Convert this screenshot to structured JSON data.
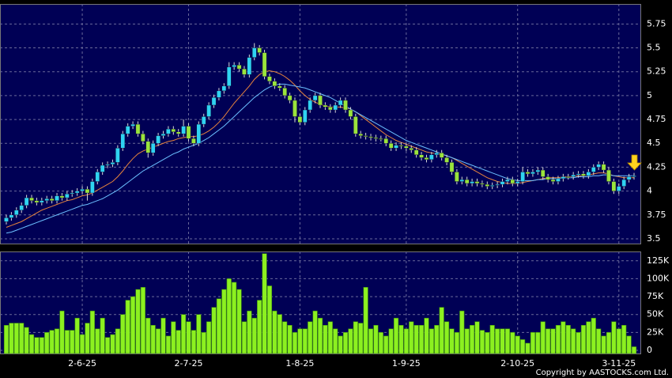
{
  "chart_data": {
    "type": "candlestick",
    "source": "Copyright by AASTOCKS.com Ltd.",
    "categories": [
      null,
      null,
      null,
      null,
      null,
      null,
      null,
      null,
      null,
      null,
      null,
      null,
      null,
      null,
      null,
      "2-6-25",
      null,
      null,
      null,
      null,
      null,
      null,
      null,
      null,
      null,
      null,
      null,
      null,
      null,
      null,
      null,
      null,
      null,
      null,
      null,
      null,
      "2-7-25",
      null,
      null,
      null,
      null,
      null,
      null,
      null,
      null,
      null,
      null,
      null,
      null,
      null,
      null,
      null,
      null,
      null,
      null,
      null,
      null,
      null,
      "1-8-25",
      null,
      null,
      null,
      null,
      null,
      null,
      null,
      null,
      null,
      null,
      null,
      null,
      null,
      null,
      null,
      null,
      null,
      null,
      null,
      null,
      "1-9-25",
      null,
      null,
      null,
      null,
      null,
      null,
      null,
      null,
      null,
      null,
      null,
      null,
      null,
      null,
      null,
      null,
      null,
      null,
      null,
      null,
      null,
      "2-10-25",
      null,
      null,
      null,
      null,
      null,
      null,
      null,
      null,
      null,
      null,
      null,
      null,
      null,
      null,
      null,
      null,
      null,
      null,
      null,
      "3-11-25",
      null,
      null,
      null
    ],
    "open": [
      3.68,
      3.72,
      3.75,
      3.8,
      3.85,
      3.93,
      3.9,
      3.88,
      3.9,
      3.92,
      3.9,
      3.95,
      3.93,
      3.97,
      3.98,
      4.0,
      4.02,
      3.98,
      4.1,
      4.2,
      4.27,
      4.28,
      4.3,
      4.45,
      4.6,
      4.68,
      4.7,
      4.6,
      4.52,
      4.4,
      4.5,
      4.58,
      4.6,
      4.65,
      4.62,
      4.6,
      4.68,
      4.55,
      4.5,
      4.7,
      4.78,
      4.9,
      4.98,
      5.05,
      5.1,
      5.3,
      5.32,
      5.28,
      5.22,
      5.4,
      5.5,
      5.45,
      5.2,
      5.15,
      5.1,
      5.08,
      5.0,
      4.95,
      4.78,
      4.72,
      4.85,
      4.95,
      5.0,
      4.9,
      4.88,
      4.85,
      4.9,
      4.95,
      4.85,
      4.78,
      4.6,
      4.58,
      4.57,
      4.56,
      4.55,
      4.55,
      4.5,
      4.45,
      4.48,
      4.47,
      4.45,
      4.43,
      4.38,
      4.35,
      4.33,
      4.38,
      4.4,
      4.35,
      4.3,
      4.2,
      4.1,
      4.12,
      4.08,
      4.1,
      4.08,
      4.07,
      4.05,
      4.06,
      4.07,
      4.1,
      4.12,
      4.08,
      4.1,
      4.2,
      4.18,
      4.2,
      4.22,
      4.15,
      4.12,
      4.1,
      4.13,
      4.15,
      4.15,
      4.17,
      4.18,
      4.16,
      4.2,
      4.25,
      4.28,
      4.22,
      4.1,
      4.0,
      4.05,
      4.12,
      4.15
    ],
    "high": [
      3.75,
      3.78,
      3.83,
      3.88,
      3.96,
      3.96,
      3.93,
      3.93,
      3.95,
      3.95,
      3.98,
      3.98,
      4.0,
      4.01,
      4.03,
      4.05,
      4.05,
      4.13,
      4.23,
      4.3,
      4.31,
      4.33,
      4.48,
      4.63,
      4.71,
      4.73,
      4.73,
      4.63,
      4.55,
      4.53,
      4.61,
      4.63,
      4.68,
      4.68,
      4.65,
      4.75,
      4.71,
      4.58,
      4.73,
      4.81,
      4.93,
      5.01,
      5.08,
      5.13,
      5.35,
      5.35,
      5.35,
      5.31,
      5.43,
      5.55,
      5.53,
      5.48,
      5.23,
      5.18,
      5.13,
      5.11,
      5.03,
      4.98,
      4.81,
      4.88,
      4.98,
      5.03,
      5.03,
      4.93,
      4.91,
      4.93,
      4.98,
      4.98,
      4.88,
      4.81,
      4.63,
      4.61,
      4.6,
      4.59,
      4.58,
      4.58,
      4.53,
      4.51,
      4.51,
      4.5,
      4.48,
      4.46,
      4.41,
      4.38,
      4.41,
      4.43,
      4.43,
      4.38,
      4.33,
      4.23,
      4.15,
      4.15,
      4.13,
      4.13,
      4.11,
      4.1,
      4.09,
      4.1,
      4.13,
      4.15,
      4.15,
      4.13,
      4.25,
      4.23,
      4.23,
      4.25,
      4.25,
      4.18,
      4.15,
      4.16,
      4.18,
      4.18,
      4.2,
      4.21,
      4.21,
      4.23,
      4.28,
      4.31,
      4.31,
      4.25,
      4.13,
      4.08,
      4.15,
      4.18,
      4.19
    ],
    "low": [
      3.65,
      3.69,
      3.72,
      3.77,
      3.82,
      3.87,
      3.85,
      3.85,
      3.87,
      3.87,
      3.87,
      3.9,
      3.9,
      3.94,
      3.95,
      3.97,
      3.9,
      3.95,
      4.07,
      4.17,
      4.24,
      4.25,
      4.27,
      4.42,
      4.57,
      4.65,
      4.57,
      4.49,
      4.35,
      4.37,
      4.47,
      4.55,
      4.57,
      4.59,
      4.57,
      4.57,
      4.52,
      4.47,
      4.47,
      4.67,
      4.75,
      4.87,
      4.95,
      5.02,
      5.07,
      5.27,
      5.25,
      5.19,
      5.19,
      5.37,
      5.42,
      5.17,
      5.12,
      5.07,
      5.05,
      4.97,
      4.92,
      4.72,
      4.69,
      4.69,
      4.82,
      4.92,
      4.87,
      4.85,
      4.82,
      4.82,
      4.87,
      4.82,
      4.75,
      4.57,
      4.55,
      4.54,
      4.53,
      4.52,
      4.52,
      4.47,
      4.42,
      4.42,
      4.44,
      4.42,
      4.4,
      4.35,
      4.32,
      4.3,
      4.3,
      4.35,
      4.32,
      4.27,
      4.17,
      4.07,
      4.07,
      4.05,
      4.05,
      4.05,
      4.04,
      4.02,
      4.02,
      4.03,
      4.04,
      4.07,
      4.05,
      4.05,
      4.07,
      4.15,
      4.15,
      4.17,
      4.12,
      4.09,
      4.07,
      4.07,
      4.1,
      4.12,
      4.12,
      4.14,
      4.13,
      4.13,
      4.17,
      4.22,
      4.19,
      4.07,
      3.97,
      3.97,
      4.02,
      4.09,
      4.12
    ],
    "close": [
      3.72,
      3.75,
      3.8,
      3.85,
      3.93,
      3.9,
      3.88,
      3.9,
      3.92,
      3.9,
      3.95,
      3.93,
      3.97,
      3.98,
      4.0,
      4.02,
      3.98,
      4.1,
      4.2,
      4.27,
      4.28,
      4.3,
      4.45,
      4.6,
      4.68,
      4.7,
      4.6,
      4.52,
      4.4,
      4.5,
      4.58,
      4.6,
      4.65,
      4.62,
      4.6,
      4.68,
      4.55,
      4.5,
      4.7,
      4.78,
      4.9,
      4.98,
      5.05,
      5.1,
      5.3,
      5.32,
      5.28,
      5.22,
      5.4,
      5.5,
      5.45,
      5.2,
      5.15,
      5.1,
      5.08,
      5.0,
      4.95,
      4.78,
      4.72,
      4.85,
      4.95,
      5.0,
      4.9,
      4.88,
      4.85,
      4.9,
      4.95,
      4.85,
      4.78,
      4.6,
      4.58,
      4.57,
      4.56,
      4.55,
      4.55,
      4.5,
      4.45,
      4.48,
      4.47,
      4.45,
      4.43,
      4.38,
      4.35,
      4.33,
      4.38,
      4.4,
      4.35,
      4.3,
      4.2,
      4.1,
      4.12,
      4.08,
      4.1,
      4.08,
      4.07,
      4.05,
      4.06,
      4.07,
      4.1,
      4.12,
      4.08,
      4.1,
      4.2,
      4.18,
      4.2,
      4.22,
      4.15,
      4.12,
      4.1,
      4.13,
      4.15,
      4.15,
      4.17,
      4.18,
      4.16,
      4.2,
      4.25,
      4.28,
      4.22,
      4.1,
      4.0,
      4.05,
      4.12,
      4.15,
      4.16
    ],
    "volume": [
      35000,
      38000,
      38000,
      38000,
      32000,
      22000,
      18000,
      18000,
      25000,
      28000,
      30000,
      55000,
      28000,
      28000,
      45000,
      22000,
      38000,
      55000,
      30000,
      45000,
      18000,
      22000,
      30000,
      50000,
      70000,
      75000,
      85000,
      88000,
      45000,
      35000,
      30000,
      45000,
      20000,
      40000,
      28000,
      50000,
      40000,
      28000,
      50000,
      25000,
      40000,
      60000,
      72000,
      85000,
      100000,
      95000,
      85000,
      40000,
      55000,
      45000,
      70000,
      135000,
      90000,
      55000,
      50000,
      40000,
      35000,
      25000,
      30000,
      30000,
      40000,
      55000,
      45000,
      35000,
      40000,
      30000,
      20000,
      25000,
      30000,
      40000,
      38000,
      88000,
      30000,
      35000,
      25000,
      20000,
      30000,
      45000,
      35000,
      30000,
      40000,
      35000,
      35000,
      45000,
      30000,
      35000,
      60000,
      40000,
      30000,
      25000,
      55000,
      30000,
      35000,
      40000,
      28000,
      25000,
      35000,
      30000,
      30000,
      30000,
      25000,
      20000,
      15000,
      10000,
      25000,
      25000,
      40000,
      30000,
      30000,
      35000,
      40000,
      35000,
      30000,
      25000,
      35000,
      40000,
      45000,
      30000,
      20000,
      25000,
      40000,
      30000,
      35000,
      20000,
      5000
    ],
    "lines": [
      {
        "color": "#e8843c",
        "values": [
          3.62,
          3.64,
          3.66,
          3.68,
          3.71,
          3.74,
          3.77,
          3.8,
          3.82,
          3.84,
          3.86,
          3.88,
          3.9,
          3.91,
          3.93,
          3.95,
          3.96,
          3.98,
          4.01,
          4.04,
          4.07,
          4.1,
          4.15,
          4.21,
          4.28,
          4.34,
          4.39,
          4.42,
          4.44,
          4.46,
          4.48,
          4.5,
          4.52,
          4.53,
          4.55,
          4.56,
          4.57,
          4.57,
          4.58,
          4.6,
          4.63,
          4.67,
          4.72,
          4.78,
          4.85,
          4.92,
          4.98,
          5.04,
          5.1,
          5.17,
          5.22,
          5.25,
          5.26,
          5.25,
          5.23,
          5.2,
          5.16,
          5.11,
          5.05,
          5.0,
          4.96,
          4.93,
          4.91,
          4.89,
          4.88,
          4.88,
          4.88,
          4.87,
          4.86,
          4.83,
          4.79,
          4.75,
          4.71,
          4.67,
          4.63,
          4.59,
          4.56,
          4.53,
          4.51,
          4.49,
          4.47,
          4.45,
          4.43,
          4.41,
          4.4,
          4.39,
          4.38,
          4.37,
          4.35,
          4.32,
          4.29,
          4.26,
          4.23,
          4.2,
          4.17,
          4.14,
          4.12,
          4.1,
          4.09,
          4.08,
          4.08,
          4.08,
          4.09,
          4.1,
          4.11,
          4.12,
          4.13,
          4.14,
          4.14,
          4.14,
          4.15,
          4.15,
          4.15,
          4.16,
          4.16,
          4.17,
          4.18,
          4.19,
          4.19,
          4.18,
          4.16,
          4.15,
          4.14,
          4.14,
          4.14
        ]
      },
      {
        "color": "#6cc0ff",
        "values": [
          3.56,
          3.57,
          3.59,
          3.61,
          3.63,
          3.65,
          3.67,
          3.69,
          3.71,
          3.73,
          3.75,
          3.77,
          3.79,
          3.81,
          3.83,
          3.85,
          3.86,
          3.88,
          3.9,
          3.92,
          3.95,
          3.98,
          4.01,
          4.05,
          4.09,
          4.13,
          4.17,
          4.21,
          4.24,
          4.27,
          4.3,
          4.33,
          4.36,
          4.39,
          4.41,
          4.44,
          4.46,
          4.48,
          4.5,
          4.53,
          4.56,
          4.6,
          4.64,
          4.68,
          4.73,
          4.78,
          4.83,
          4.88,
          4.93,
          4.98,
          5.02,
          5.06,
          5.09,
          5.11,
          5.12,
          5.12,
          5.11,
          5.1,
          5.09,
          5.08,
          5.06,
          5.04,
          5.02,
          5.0,
          4.98,
          4.95,
          4.92,
          4.89,
          4.86,
          4.83,
          4.8,
          4.77,
          4.74,
          4.71,
          4.68,
          4.65,
          4.62,
          4.59,
          4.56,
          4.53,
          4.51,
          4.49,
          4.47,
          4.45,
          4.43,
          4.41,
          4.39,
          4.37,
          4.35,
          4.33,
          4.31,
          4.29,
          4.27,
          4.25,
          4.23,
          4.21,
          4.19,
          4.17,
          4.15,
          4.13,
          4.12,
          4.11,
          4.11,
          4.11,
          4.11,
          4.12,
          4.12,
          4.13,
          4.13,
          4.13,
          4.14,
          4.14,
          4.14,
          4.15,
          4.15,
          4.15,
          4.16,
          4.16,
          4.17,
          4.17,
          4.16,
          4.16,
          4.16,
          4.16,
          4.16
        ]
      }
    ],
    "up_color": "#2fd3f2",
    "down_color": "#9ae43c",
    "volume_color": "#8cf020",
    "ylim": [
      3.45,
      5.96
    ],
    "yticks": [
      3.5,
      3.75,
      4,
      4.25,
      4.5,
      4.75,
      5,
      5.25,
      5.5,
      5.75
    ],
    "volume_ylim": [
      0,
      138000
    ],
    "volume_ticks": [
      0,
      {
        "value": 25000,
        "label": "25K"
      },
      {
        "value": 50000,
        "label": "50K"
      },
      {
        "value": 75000,
        "label": "75K"
      },
      {
        "value": 100000,
        "label": "100K"
      },
      {
        "value": 125000,
        "label": "125K"
      }
    ],
    "grid": true
  }
}
